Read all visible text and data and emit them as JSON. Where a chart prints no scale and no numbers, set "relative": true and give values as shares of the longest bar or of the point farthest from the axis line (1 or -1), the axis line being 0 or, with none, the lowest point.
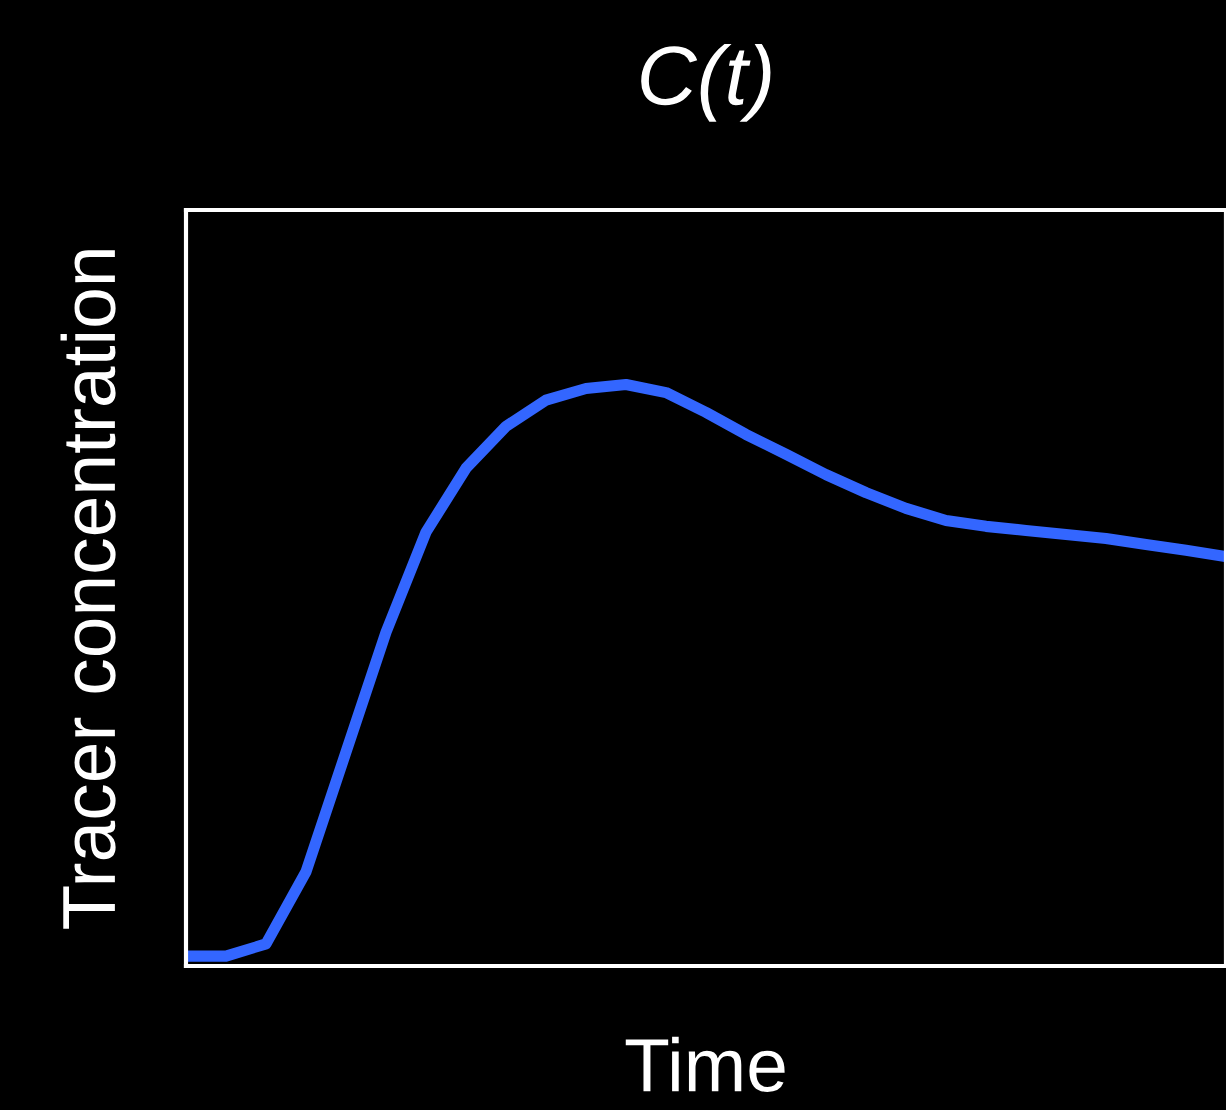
{
  "chart_data": {
    "type": "line",
    "title": "C(t)",
    "xlabel": "Time",
    "ylabel": "Tracer concentration",
    "relative": true,
    "categories": [
      null,
      null,
      null,
      null,
      null,
      null,
      null,
      null,
      null,
      null,
      null,
      null,
      null,
      null,
      null,
      null,
      null,
      null,
      null,
      null,
      null,
      null,
      null,
      null,
      null,
      null,
      null
    ],
    "series": [
      {
        "color": "#3366ff",
        "values": [
          0.017,
          0.017,
          0.038,
          0.162,
          0.368,
          0.574,
          0.746,
          0.856,
          0.928,
          0.973,
          0.993,
          1.0,
          0.986,
          0.952,
          0.914,
          0.88,
          0.845,
          0.814,
          0.787,
          0.766,
          0.756,
          0.749,
          0.742,
          0.735,
          0.725,
          0.715,
          0.704
        ]
      }
    ],
    "grid": false,
    "legend": false,
    "marker": "none",
    "line_style": "solid"
  }
}
